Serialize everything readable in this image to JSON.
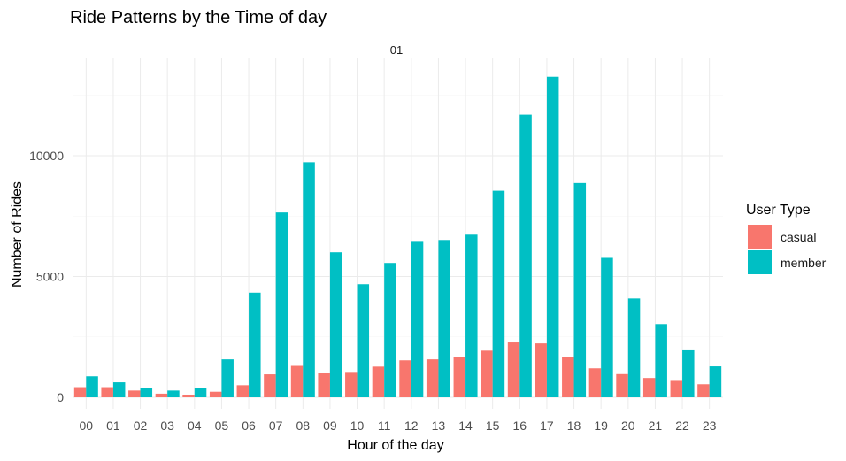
{
  "chart_data": {
    "type": "bar",
    "title": "Ride Patterns by the Time of day",
    "facet_label": "01",
    "xlabel": "Hour of the day",
    "ylabel": "Number of Rides",
    "ylim": [
      0,
      13600
    ],
    "yticks": [
      0,
      5000,
      10000
    ],
    "grid": true,
    "legend": {
      "title": "User Type",
      "position": "right"
    },
    "categories": [
      "00",
      "01",
      "02",
      "03",
      "04",
      "05",
      "06",
      "07",
      "08",
      "09",
      "10",
      "11",
      "12",
      "13",
      "14",
      "15",
      "16",
      "17",
      "18",
      "19",
      "20",
      "21",
      "22",
      "23"
    ],
    "series": [
      {
        "name": "casual",
        "color": "#F8766D",
        "values": [
          420,
          420,
          280,
          150,
          110,
          230,
          500,
          950,
          1300,
          1000,
          1050,
          1270,
          1530,
          1570,
          1650,
          1930,
          2270,
          2230,
          1680,
          1200,
          960,
          800,
          680,
          540
        ]
      },
      {
        "name": "member",
        "color": "#00BFC4",
        "values": [
          870,
          620,
          400,
          280,
          370,
          1570,
          4330,
          7650,
          9730,
          6000,
          4680,
          5560,
          6470,
          6510,
          6730,
          8550,
          11700,
          13270,
          8870,
          5770,
          4090,
          3030,
          1980,
          1280
        ]
      }
    ]
  }
}
